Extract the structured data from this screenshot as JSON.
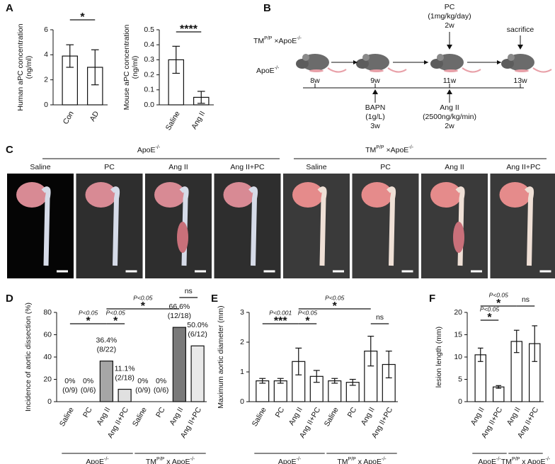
{
  "panels": [
    "A",
    "B",
    "C",
    "D",
    "E",
    "F"
  ],
  "timeline": {
    "strains": [
      [
        "TM",
        "P/P",
        " ×ApoE",
        "-/-"
      ],
      [
        "ApoE",
        "-/-"
      ]
    ],
    "weeks": [
      "8w",
      "9w",
      "11w",
      "13w"
    ],
    "above": [
      [
        "PC",
        "(1mg/kg/day)",
        "2w"
      ],
      [
        "sacrifice"
      ]
    ],
    "below": [
      [
        "BAPN",
        "(1g/L)",
        "3w"
      ],
      [
        "Ang II",
        "(2500ng/kg/min)",
        "2w"
      ]
    ]
  },
  "photos": {
    "groups": [
      [
        "ApoE",
        "-/-"
      ],
      [
        "TM",
        "P/P",
        " ×ApoE",
        "-/-"
      ]
    ],
    "columns": [
      "Saline",
      "PC",
      "Ang II",
      "Ang II+PC",
      "Saline",
      "PC",
      "Ang II",
      "Ang II+PC"
    ]
  },
  "chart_data": [
    {
      "type": "bar",
      "y_label": [
        "Human aPC concentration",
        "(ng/ml)"
      ],
      "categories": [
        "Con",
        "AD"
      ],
      "values": [
        3.9,
        3.0
      ],
      "errors": [
        0.9,
        1.4
      ],
      "colors": [
        "#ffffff",
        "#ffffff"
      ],
      "ylim": [
        0,
        6
      ],
      "yticks": [
        0,
        2,
        4,
        6
      ],
      "annotations": [
        {
          "text": "*"
        }
      ]
    },
    {
      "type": "bar",
      "y_label": [
        "Mouse aPC concentration",
        "(ng/ml)"
      ],
      "categories": [
        "Saline",
        "Ang II"
      ],
      "values": [
        0.3,
        0.05
      ],
      "errors": [
        0.09,
        0.04
      ],
      "colors": [
        "#ffffff",
        "#ffffff"
      ],
      "ylim": [
        0,
        0.5
      ],
      "yticks": [
        {
          "value": 0,
          "label": "0.0"
        },
        0.1,
        0.2,
        0.3,
        0.4,
        0.5
      ],
      "annotations": [
        {
          "text": "****"
        }
      ]
    },
    {
      "type": "bar",
      "y_label": [
        "Incidence of aortic dissection (%)"
      ],
      "categories": [
        "Saline",
        "PC",
        "Ang II",
        "Ang II+PC",
        "Saline",
        "PC",
        "Ang II",
        "Ang II+PC"
      ],
      "values": [
        0,
        0,
        36.4,
        11.1,
        0,
        0,
        66.6,
        50.0
      ],
      "value_labels": [
        "0%",
        "0%",
        "36.4%",
        "11.1%",
        "0%",
        "0%",
        "66.6%",
        "50.0%"
      ],
      "fractions": [
        "(0/9)",
        "(0/6)",
        "(8/22)",
        "(2/18)",
        "(0/9)",
        "(0/6)",
        "(12/18)",
        "(6/12)"
      ],
      "colors": [
        "#ffffff",
        "#ffffff",
        "#a6a6a6",
        "#e0e0e0",
        "#ffffff",
        "#ffffff",
        "#7a7a7a",
        "#e9e9e9"
      ],
      "ylim": [
        0,
        80
      ],
      "yticks": [
        0,
        20,
        40,
        60,
        80
      ],
      "groups": [
        [
          "ApoE",
          "-/-"
        ],
        [
          "TM",
          "P/P",
          " x ApoE",
          "-/-"
        ]
      ],
      "annotations": [
        {
          "text": "*",
          "p": "P<0.05"
        },
        {
          "text": "*",
          "p": "P<0.05"
        },
        {
          "text": "*",
          "p": "P<0.05"
        },
        {
          "text": "ns"
        }
      ]
    },
    {
      "type": "bar",
      "y_label": [
        "Maximum aortic diameter (mm)"
      ],
      "categories": [
        "Saline",
        "PC",
        "Ang II",
        "Ang II+PC",
        "Saline",
        "PC",
        "Ang II",
        "Ang II+PC"
      ],
      "values": [
        0.7,
        0.7,
        1.35,
        0.85,
        0.7,
        0.65,
        1.7,
        1.25
      ],
      "errors": [
        0.08,
        0.08,
        0.45,
        0.2,
        0.08,
        0.1,
        0.5,
        0.45
      ],
      "colors": [
        "#ffffff",
        "#ffffff",
        "#ffffff",
        "#ffffff",
        "#ffffff",
        "#ffffff",
        "#ffffff",
        "#ffffff"
      ],
      "ylim": [
        0,
        3
      ],
      "yticks": [
        0,
        1,
        2,
        3
      ],
      "groups": [
        [
          "ApoE",
          "-/-"
        ],
        [
          "TM",
          "P/P",
          " x ApoE",
          "-/-"
        ]
      ],
      "annotations": [
        {
          "text": "***",
          "p": "P<0.001"
        },
        {
          "text": "*",
          "p": "P<0.05"
        },
        {
          "text": "*",
          "p": "P<0.05"
        },
        {
          "text": "ns"
        }
      ]
    },
    {
      "type": "bar",
      "y_label": [
        "lesion length (mm)"
      ],
      "categories": [
        "Ang II",
        "Ang II+PC",
        "Ang II",
        "Ang II+PC"
      ],
      "values": [
        10.5,
        3.3,
        13.5,
        13
      ],
      "errors": [
        1.5,
        0.3,
        2.5,
        4
      ],
      "colors": [
        "#ffffff",
        "#ffffff",
        "#ffffff",
        "#ffffff"
      ],
      "ylim": [
        0,
        20
      ],
      "yticks": [
        0,
        5,
        10,
        15,
        20
      ],
      "groups": [
        [
          "ApoE",
          "-/-"
        ],
        [
          "TM",
          "P/P",
          " x ApoE",
          "-/-"
        ]
      ],
      "annotations": [
        {
          "text": "*",
          "p": "P<0.05"
        },
        {
          "text": "*",
          "p": "P<0.05"
        },
        {
          "text": "ns"
        }
      ]
    }
  ]
}
